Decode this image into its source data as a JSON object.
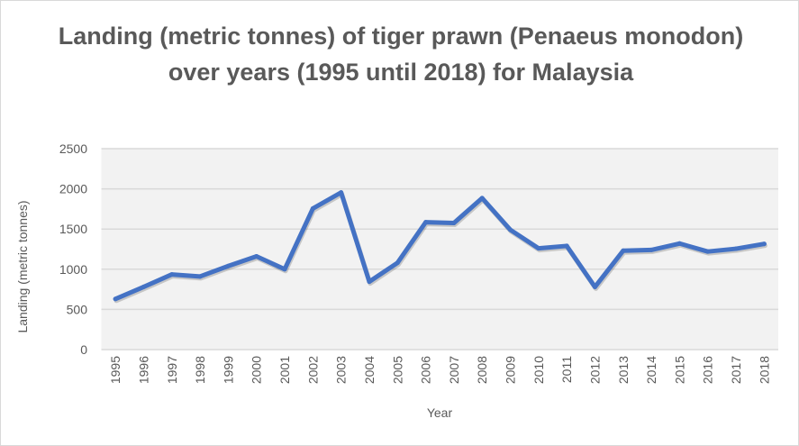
{
  "chart_data": {
    "type": "line",
    "title": "Landing (metric tonnes) of tiger prawn (Penaeus monodon) over years (1995 until 2018) for Malaysia",
    "xlabel": "Year",
    "ylabel": "Landing (metric tonnes)",
    "ylim": [
      0,
      2500
    ],
    "yticks": [
      "0",
      "500",
      "1000",
      "1500",
      "2000",
      "2500"
    ],
    "grid": true,
    "legend": "none",
    "line_color": "#4472C4",
    "plot_background": "#F2F2F2",
    "categories": [
      "1995",
      "1996",
      "1997",
      "1998",
      "1999",
      "2000",
      "2001",
      "2002",
      "2003",
      "2004",
      "2005",
      "2006",
      "2007",
      "2008",
      "2009",
      "2010",
      "2011",
      "2012",
      "2013",
      "2014",
      "2015",
      "2016",
      "2017",
      "2018"
    ],
    "values": [
      630,
      780,
      935,
      910,
      1040,
      1160,
      1000,
      1755,
      1955,
      845,
      1080,
      1585,
      1575,
      1885,
      1490,
      1260,
      1290,
      780,
      1230,
      1240,
      1320,
      1220,
      1255,
      1315
    ]
  }
}
